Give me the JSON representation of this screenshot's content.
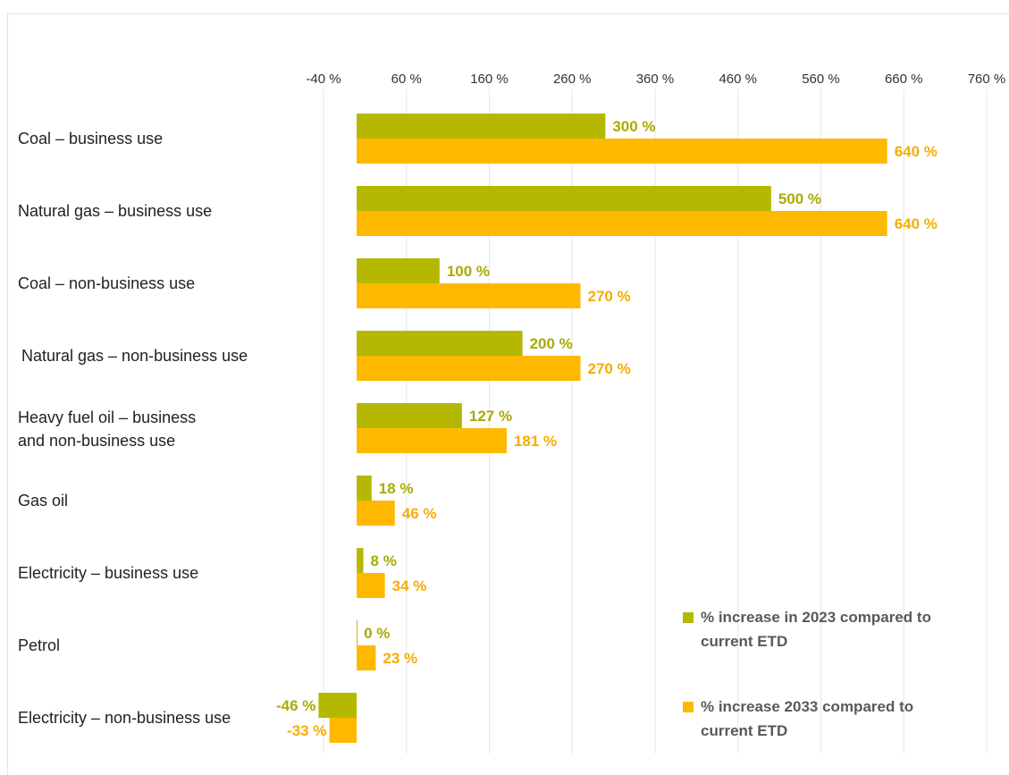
{
  "chart_data": {
    "type": "bar",
    "orientation": "horizontal",
    "categories": [
      [
        "Coal – business use"
      ],
      [
        "Natural gas – business use"
      ],
      [
        "Coal – non-business use"
      ],
      [
        "Natural gas – non-business use"
      ],
      [
        "Heavy fuel oil – business",
        "and non-business use"
      ],
      [
        "Gas oil"
      ],
      [
        "Electricity – business use"
      ],
      [
        "Petrol"
      ],
      [
        "Electricity – non-business use"
      ]
    ],
    "series": [
      {
        "name": [
          "% increase in 2023 compared to",
          "current ETD"
        ],
        "color": "#b5b800",
        "values": [
          300,
          500,
          100,
          200,
          127,
          18,
          8,
          0,
          -46
        ],
        "labels": [
          "300 %",
          "500 %",
          "100 %",
          "200 %",
          "127 %",
          "18 %",
          "8 %",
          "0 %",
          "-46 %"
        ]
      },
      {
        "name": [
          "% increase 2033 compared to",
          "current ETD"
        ],
        "color": "#ffb800",
        "values": [
          640,
          640,
          270,
          270,
          181,
          46,
          34,
          23,
          -33
        ],
        "labels": [
          "640 %",
          "640 %",
          "270 %",
          "270 %",
          "181 %",
          "46 %",
          "34 %",
          "23 %",
          "-33 %"
        ]
      }
    ],
    "x_ticks": [
      "-40 %",
      "60 %",
      "160 %",
      "260 %",
      "360 %",
      "460 %",
      "560 %",
      "660 %",
      "760 %"
    ],
    "x_tick_values": [
      -40,
      60,
      160,
      260,
      360,
      460,
      560,
      660,
      760
    ],
    "xlim": [
      -40,
      760
    ],
    "grid": true,
    "legend_position": "bottom-right",
    "title": "",
    "xlabel": "",
    "ylabel": ""
  }
}
